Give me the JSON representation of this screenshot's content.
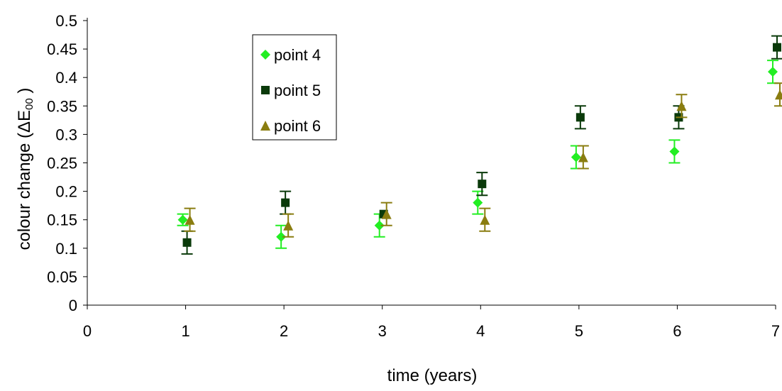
{
  "chart_data": {
    "type": "scatter",
    "title": "",
    "xlabel": "time (years)",
    "ylabel_main": "colour change (ΔE",
    "ylabel_sub": "00",
    "ylabel_close": " )",
    "xlim": [
      0,
      7
    ],
    "ylim": [
      0,
      0.5
    ],
    "x_ticks": [
      "0",
      "1",
      "2",
      "3",
      "4",
      "5",
      "6",
      "7"
    ],
    "y_ticks": [
      "0",
      "0.05",
      "0.1",
      "0.15",
      "0.2",
      "0.25",
      "0.3",
      "0.35",
      "0.4",
      "0.45",
      "0.5"
    ],
    "grid": false,
    "legend_position": "top-left inside plot",
    "series": [
      {
        "name": "point 4",
        "marker": "diamond",
        "color": "#22ee22",
        "points": [
          {
            "x": 1,
            "y": 0.15,
            "err": 0.01
          },
          {
            "x": 2,
            "y": 0.12,
            "err": 0.02
          },
          {
            "x": 3,
            "y": 0.14,
            "err": 0.02
          },
          {
            "x": 4,
            "y": 0.18,
            "err": 0.02
          },
          {
            "x": 5,
            "y": 0.26,
            "err": 0.02
          },
          {
            "x": 6,
            "y": 0.27,
            "err": 0.02
          },
          {
            "x": 7,
            "y": 0.41,
            "err": 0.02
          }
        ]
      },
      {
        "name": "point 5",
        "marker": "square",
        "color": "#0a3a0a",
        "points": [
          {
            "x": 1,
            "y": 0.11,
            "err": 0.02
          },
          {
            "x": 2,
            "y": 0.18,
            "err": 0.02
          },
          {
            "x": 3,
            "y": 0.16,
            "err": 0.0
          },
          {
            "x": 4,
            "y": 0.213,
            "err": 0.02
          },
          {
            "x": 5,
            "y": 0.33,
            "err": 0.02
          },
          {
            "x": 6,
            "y": 0.33,
            "err": 0.02
          },
          {
            "x": 7,
            "y": 0.453,
            "err": 0.02
          }
        ]
      },
      {
        "name": "point 6",
        "marker": "triangle",
        "color": "#8a7d10",
        "points": [
          {
            "x": 1,
            "y": 0.15,
            "err": 0.02
          },
          {
            "x": 2,
            "y": 0.14,
            "err": 0.02
          },
          {
            "x": 3,
            "y": 0.16,
            "err": 0.02
          },
          {
            "x": 4,
            "y": 0.15,
            "err": 0.02
          },
          {
            "x": 5,
            "y": 0.26,
            "err": 0.02
          },
          {
            "x": 6,
            "y": 0.35,
            "err": 0.02
          },
          {
            "x": 7,
            "y": 0.37,
            "err": 0.02
          }
        ]
      }
    ]
  }
}
